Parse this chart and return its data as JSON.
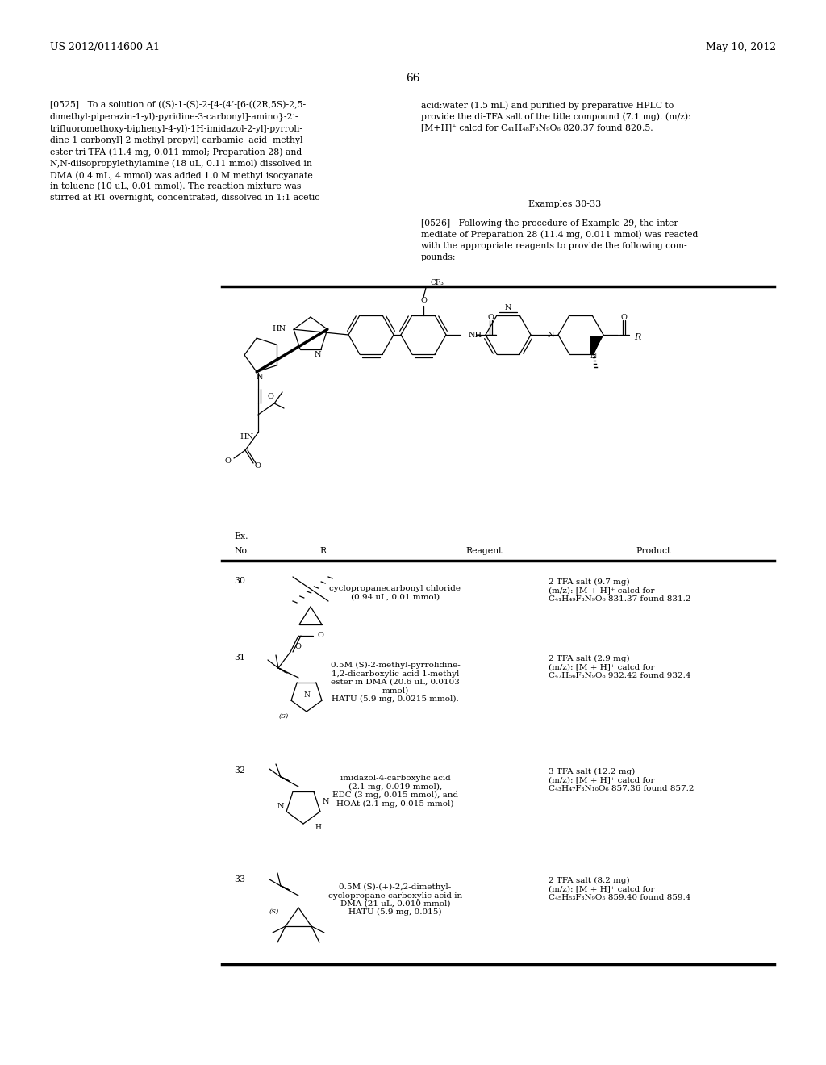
{
  "header_left": "US 2012/0114600 A1",
  "header_right": "May 10, 2012",
  "page_number": "66",
  "para_0525_left": "[0525]   To a solution of ((S)-1-(S)-2-[4-(4’-[6-((2R,5S)-2,5-\ndimethyl-piperazin-1-yl)-pyridine-3-carbonyl]-amino}-2’-\ntrifluoromethoxy-biphenyl-4-yl)-1H-imidazol-2-yl]-pyrroli-\ndine-1-carbonyl]-2-methyl-propyl)-carbamic  acid  methyl\nester tri-TFA (11.4 mg, 0.011 mmol; Preparation 28) and\nN,N-diisopropylethylamine (18 uL, 0.11 mmol) dissolved in\nDMA (0.4 mL, 4 mmol) was added 1.0 M methyl isocyanate\nin toluene (10 uL, 0.01 mmol). The reaction mixture was\nstirred at RT overnight, concentrated, dissolved in 1:1 acetic",
  "para_0525_right": "acid:water (1.5 mL) and purified by preparative HPLC to\nprovide the di-TFA salt of the title compound (7.1 mg). (m/z):\n[M+H]⁺ calcd for C₄₁H₄₈F₃N₉O₆ 820.37 found 820.5.",
  "examples_header": "Examples 30-33",
  "para_0526": "[0526]   Following the procedure of Example 29, the inter-\nmediate of Preparation 28 (11.4 mg, 0.011 mmol) was reacted\nwith the appropriate reagents to provide the following com-\npounds:",
  "row30_reagent": "cyclopropanecarbonyl chloride\n(0.94 uL, 0.01 mmol)",
  "row30_product": "2 TFA salt (9.7 mg)\n(m/z): [M + H]⁺ calcd for\nC₄₁H₄₉F₃N₉O₆ 831.37 found 831.2",
  "row31_reagent": "0.5M (S)-2-methyl-pyrrolidine-\n1,2-dicarboxylic acid 1-methyl\nester in DMA (20.6 uL, 0.0103\nmmol)\nHATU (5.9 mg, 0.0215 mmol).",
  "row31_product": "2 TFA salt (2.9 mg)\n(m/z): [M + H]⁺ calcd for\nC₄₇H₅₆F₃N₉O₈ 932.42 found 932.4",
  "row32_reagent": "imidazol-4-carboxylic acid\n(2.1 mg, 0.019 mmol),\nEDC (3 mg, 0.015 mmol), and\nHOAt (2.1 mg, 0.015 mmol)",
  "row32_product": "3 TFA salt (12.2 mg)\n(m/z): [M + H]⁺ calcd for\nC₄₃H₄₇F₃N₁₀O₆ 857.36 found 857.2",
  "row33_reagent": "0.5M (S)-(+)-2,2-dimethyl-\ncyclopropane carboxylic acid in\nDMA (21 uL, 0.010 mmol)\nHATU (5.9 mg, 0.015)",
  "row33_product": "2 TFA salt (8.2 mg)\n(m/z): [M + H]⁺ calcd for\nC₄₅H₅₃F₃N₉O₅ 859.40 found 859.4",
  "background_color": "#ffffff"
}
